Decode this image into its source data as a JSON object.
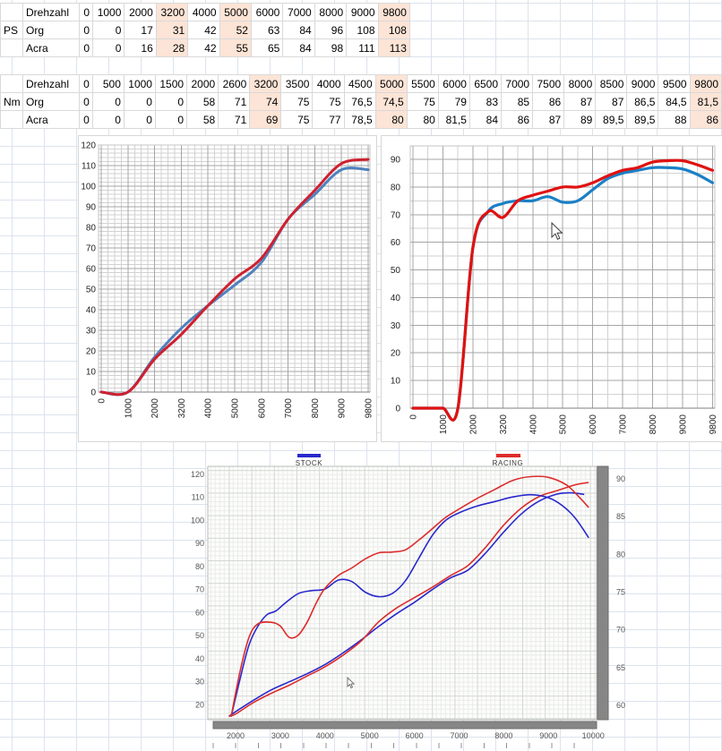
{
  "tables": {
    "highlight_color": "#fce4d6",
    "ps": {
      "group_label": "PS",
      "header_label": "Drehzahl",
      "series_labels": [
        "Org",
        "Acra"
      ],
      "drehzahl": [
        "0",
        "1000",
        "2000",
        "3200",
        "4000",
        "5000",
        "6000",
        "7000",
        "8000",
        "9000",
        "9800"
      ],
      "org": [
        "0",
        "0",
        "17",
        "31",
        "42",
        "52",
        "63",
        "84",
        "96",
        "108",
        "108"
      ],
      "acra": [
        "0",
        "0",
        "16",
        "28",
        "42",
        "55",
        "65",
        "84",
        "98",
        "111",
        "113"
      ],
      "highlight_columns": [
        3,
        5,
        10
      ]
    },
    "nm": {
      "group_label": "Nm",
      "header_label": "Drehzahl",
      "series_labels": [
        "Org",
        "Acra"
      ],
      "drehzahl": [
        "0",
        "500",
        "1000",
        "1500",
        "2000",
        "2600",
        "3200",
        "3500",
        "4000",
        "4500",
        "5000",
        "5500",
        "6000",
        "6500",
        "7000",
        "7500",
        "8000",
        "8500",
        "9000",
        "9500",
        "9800"
      ],
      "org": [
        "0",
        "0",
        "0",
        "0",
        "58",
        "71",
        "74",
        "75",
        "75",
        "76,5",
        "74,5",
        "75",
        "79",
        "83",
        "85",
        "86",
        "87",
        "87",
        "86,5",
        "84,5",
        "81,5"
      ],
      "acra": [
        "0",
        "0",
        "0",
        "0",
        "58",
        "71",
        "69",
        "75",
        "77",
        "78,5",
        "80",
        "80",
        "81,5",
        "84",
        "86",
        "87",
        "89",
        "89,5",
        "89,5",
        "88",
        "86"
      ],
      "highlight_columns": [
        6,
        10,
        20
      ]
    }
  },
  "chart_data": [
    {
      "id": "ps_chart",
      "type": "line",
      "title": "PS vs Drehzahl (Org vs Acra)",
      "categories": [
        0,
        1000,
        2000,
        3200,
        4000,
        5000,
        6000,
        7000,
        8000,
        9000,
        9800
      ],
      "series": [
        {
          "name": "Org",
          "color": "#4f81bd",
          "values": [
            0,
            0,
            17,
            31,
            42,
            52,
            63,
            84,
            96,
            108,
            108
          ]
        },
        {
          "name": "Acra",
          "color": "#cf2030",
          "values": [
            0,
            0,
            16,
            28,
            42,
            55,
            65,
            84,
            98,
            111,
            113
          ]
        }
      ],
      "ylim": [
        0,
        120
      ],
      "y_major": 10,
      "y_minor": 2,
      "x_label_every": 1,
      "grid": true,
      "legend": "none"
    },
    {
      "id": "nm_chart",
      "type": "line",
      "title": "Nm vs Drehzahl (Org vs Acra)",
      "categories": [
        0,
        500,
        1000,
        1500,
        2000,
        2600,
        3200,
        3500,
        4000,
        4500,
        5000,
        5500,
        6000,
        6500,
        7000,
        7500,
        8000,
        8500,
        9000,
        9500,
        9800
      ],
      "series": [
        {
          "name": "Org",
          "color": "#1a80c6",
          "values": [
            0,
            0,
            0,
            0,
            58,
            71,
            74,
            75,
            75,
            76.5,
            74.5,
            75,
            79,
            83,
            85,
            86,
            87,
            87,
            86.5,
            84.5,
            81.5
          ]
        },
        {
          "name": "Acra",
          "color": "#e01212",
          "values": [
            0,
            0,
            0,
            0,
            58,
            71,
            69,
            75,
            77,
            78.5,
            80,
            80,
            81.5,
            84,
            86,
            87,
            89,
            89.5,
            89.5,
            88,
            86
          ]
        }
      ],
      "ylim": [
        0,
        90
      ],
      "y_major": 10,
      "y_minor": 5,
      "x_label_every": 2,
      "grid": true,
      "legend": "none"
    },
    {
      "id": "dyno_chart",
      "type": "line",
      "title": "Dyno run STOCK vs RACING (power left axis PS, torque right axis Nm)",
      "x_ticks": [
        2000,
        3000,
        4000,
        5000,
        6000,
        7000,
        8000,
        9000,
        10000
      ],
      "x_minor_tick_step": 500,
      "left_axis": {
        "ticks": [
          20,
          30,
          40,
          50,
          60,
          70,
          80,
          90,
          100,
          110,
          120
        ]
      },
      "right_axis": {
        "ticks": [
          60,
          65,
          70,
          75,
          80,
          85,
          90
        ]
      },
      "legend": [
        {
          "label": "STOCK",
          "color": "#2828cc"
        },
        {
          "label": "RACING",
          "color": "#dd2c2c"
        }
      ],
      "series": [
        {
          "name": "STOCK PS",
          "axis": "left",
          "color": "#2828cc",
          "points": [
            [
              1850,
              15
            ],
            [
              2000,
              17
            ],
            [
              2400,
              22
            ],
            [
              2800,
              26.5
            ],
            [
              3200,
              30
            ],
            [
              3600,
              33.5
            ],
            [
              4000,
              37.5
            ],
            [
              4400,
              42.5
            ],
            [
              4800,
              48
            ],
            [
              5200,
              54
            ],
            [
              5600,
              59.5
            ],
            [
              6000,
              64.5
            ],
            [
              6400,
              70
            ],
            [
              6800,
              75
            ],
            [
              7200,
              78.5
            ],
            [
              7600,
              86
            ],
            [
              8000,
              95
            ],
            [
              8400,
              103
            ],
            [
              8800,
              108.5
            ],
            [
              9200,
              111.5
            ],
            [
              9500,
              112
            ],
            [
              9800,
              111.3
            ]
          ]
        },
        {
          "name": "RACING PS",
          "axis": "left",
          "color": "#dd2c2c",
          "points": [
            [
              1850,
              15
            ],
            [
              2000,
              16
            ],
            [
              2400,
              21
            ],
            [
              2800,
              25
            ],
            [
              3200,
              28.5
            ],
            [
              3600,
              32.5
            ],
            [
              4000,
              36.5
            ],
            [
              4400,
              41.5
            ],
            [
              4800,
              47.5
            ],
            [
              5200,
              56
            ],
            [
              5600,
              62
            ],
            [
              6000,
              66.5
            ],
            [
              6400,
              71
            ],
            [
              6800,
              76
            ],
            [
              7200,
              80.5
            ],
            [
              7600,
              88.5
            ],
            [
              8000,
              98
            ],
            [
              8400,
              105.5
            ],
            [
              8800,
              110.5
            ],
            [
              9200,
              113
            ],
            [
              9600,
              115.5
            ],
            [
              9900,
              116.5
            ]
          ]
        },
        {
          "name": "STOCK Nm",
          "axis": "right",
          "color": "#2828cc",
          "points": [
            [
              1900,
              58.5
            ],
            [
              2100,
              63.5
            ],
            [
              2300,
              68
            ],
            [
              2500,
              70.5
            ],
            [
              2700,
              72
            ],
            [
              2900,
              72.5
            ],
            [
              3100,
              73.5
            ],
            [
              3400,
              74.8
            ],
            [
              3700,
              75.2
            ],
            [
              4000,
              75.4
            ],
            [
              4300,
              76.6
            ],
            [
              4600,
              76.4
            ],
            [
              4900,
              75
            ],
            [
              5200,
              74.4
            ],
            [
              5500,
              74.8
            ],
            [
              5800,
              76.5
            ],
            [
              6100,
              79.5
            ],
            [
              6400,
              82.5
            ],
            [
              6700,
              84.5
            ],
            [
              7000,
              85.5
            ],
            [
              7400,
              86.4
            ],
            [
              7800,
              87
            ],
            [
              8200,
              87.6
            ],
            [
              8600,
              87.9
            ],
            [
              9000,
              87.5
            ],
            [
              9300,
              86.5
            ],
            [
              9600,
              84.8
            ],
            [
              9900,
              82.2
            ]
          ]
        },
        {
          "name": "RACING Nm",
          "axis": "right",
          "color": "#dd2c2c",
          "points": [
            [
              1900,
              58.5
            ],
            [
              2100,
              64.5
            ],
            [
              2300,
              69
            ],
            [
              2500,
              70.8
            ],
            [
              2800,
              71
            ],
            [
              3000,
              70.5
            ],
            [
              3200,
              69
            ],
            [
              3400,
              69.3
            ],
            [
              3600,
              71
            ],
            [
              3800,
              73.5
            ],
            [
              4000,
              75.5
            ],
            [
              4300,
              77.2
            ],
            [
              4600,
              78.2
            ],
            [
              4900,
              79.4
            ],
            [
              5200,
              80.2
            ],
            [
              5500,
              80.3
            ],
            [
              5800,
              80.6
            ],
            [
              6100,
              81.9
            ],
            [
              6400,
              83.4
            ],
            [
              6700,
              84.9
            ],
            [
              7000,
              86
            ],
            [
              7400,
              87.4
            ],
            [
              7800,
              88.6
            ],
            [
              8200,
              89.8
            ],
            [
              8600,
              90.3
            ],
            [
              9000,
              90.2
            ],
            [
              9400,
              89.2
            ],
            [
              9700,
              87.5
            ],
            [
              9900,
              86.2
            ]
          ]
        }
      ]
    }
  ]
}
